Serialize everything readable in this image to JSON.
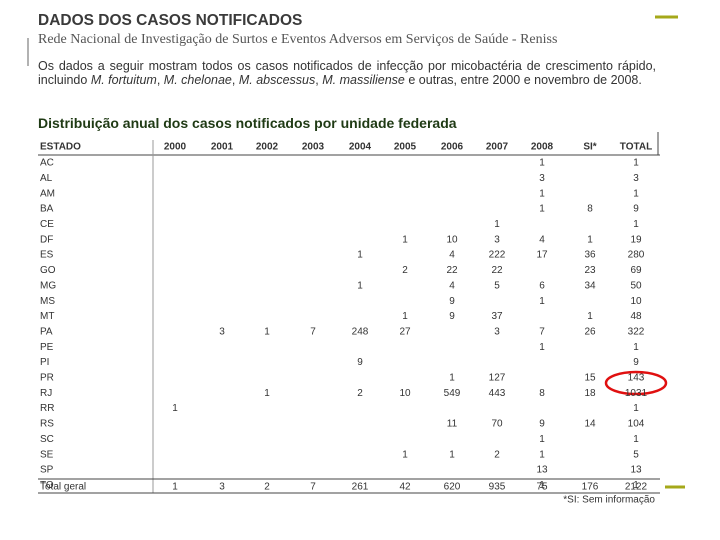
{
  "header": {
    "title": "DADOS DOS CASOS NOTIFICADOS",
    "subtitle": "Rede Nacional de Investigação de Surtos e Eventos Adversos em Serviços de Saúde - Reniss"
  },
  "intro": [
    "Os dados a seguir mostram todos os casos notificados de infecção por micobactéria de crescimento rápido, incluindo ",
    "M. fortuitum",
    ", ",
    "M. chelonae",
    ", ",
    "M. abscessus",
    ", ",
    "M. massiliense",
    " e outras, entre 2000 e novembro de 2008."
  ],
  "table": {
    "title": "Distribuição anual dos casos notificados por unidade federada",
    "columns": [
      "ESTADO",
      "2000",
      "2001",
      "2002",
      "2003",
      "2004",
      "2005",
      "2006",
      "2007",
      "2008",
      "SI*",
      "TOTAL"
    ],
    "rows": [
      [
        "AC",
        null,
        null,
        null,
        null,
        null,
        null,
        null,
        null,
        1,
        null,
        1
      ],
      [
        "AL",
        null,
        null,
        null,
        null,
        null,
        null,
        null,
        null,
        3,
        null,
        3
      ],
      [
        "AM",
        null,
        null,
        null,
        null,
        null,
        null,
        null,
        null,
        1,
        null,
        1
      ],
      [
        "BA",
        null,
        null,
        null,
        null,
        null,
        null,
        null,
        null,
        1,
        8,
        9
      ],
      [
        "CE",
        null,
        null,
        null,
        null,
        null,
        null,
        null,
        1,
        null,
        null,
        1
      ],
      [
        "DF",
        null,
        null,
        null,
        null,
        null,
        1,
        10,
        3,
        4,
        1,
        19
      ],
      [
        "ES",
        null,
        null,
        null,
        null,
        1,
        null,
        4,
        222,
        17,
        36,
        280
      ],
      [
        "GO",
        null,
        null,
        null,
        null,
        null,
        2,
        22,
        22,
        null,
        23,
        69
      ],
      [
        "MG",
        null,
        null,
        null,
        null,
        1,
        null,
        4,
        5,
        6,
        34,
        50
      ],
      [
        "MS",
        null,
        null,
        null,
        null,
        null,
        null,
        9,
        null,
        1,
        null,
        10
      ],
      [
        "MT",
        null,
        null,
        null,
        null,
        null,
        1,
        9,
        37,
        null,
        1,
        48
      ],
      [
        "PA",
        null,
        3,
        1,
        7,
        248,
        27,
        null,
        3,
        7,
        26,
        322
      ],
      [
        "PE",
        null,
        null,
        null,
        null,
        null,
        null,
        null,
        null,
        1,
        null,
        1
      ],
      [
        "PI",
        null,
        null,
        null,
        null,
        9,
        null,
        null,
        null,
        null,
        null,
        9
      ],
      [
        "PR",
        null,
        null,
        null,
        null,
        null,
        null,
        1,
        127,
        null,
        15,
        143
      ],
      [
        "RJ",
        null,
        null,
        1,
        null,
        2,
        10,
        549,
        443,
        8,
        18,
        1031
      ],
      [
        "RR",
        1,
        null,
        null,
        null,
        null,
        null,
        null,
        null,
        null,
        null,
        1
      ],
      [
        "RS",
        null,
        null,
        null,
        null,
        null,
        null,
        11,
        70,
        9,
        14,
        104
      ],
      [
        "SC",
        null,
        null,
        null,
        null,
        null,
        null,
        null,
        null,
        1,
        null,
        1
      ],
      [
        "SE",
        null,
        null,
        null,
        null,
        null,
        1,
        1,
        2,
        1,
        null,
        5
      ],
      [
        "SP",
        null,
        null,
        null,
        null,
        null,
        null,
        null,
        null,
        13,
        null,
        13
      ],
      [
        "TO",
        null,
        null,
        null,
        null,
        null,
        null,
        null,
        null,
        1,
        null,
        1
      ]
    ],
    "total": [
      "Total geral",
      1,
      3,
      2,
      7,
      261,
      42,
      620,
      935,
      75,
      176,
      2122
    ],
    "footnote": "*SI: Sem informação"
  }
}
